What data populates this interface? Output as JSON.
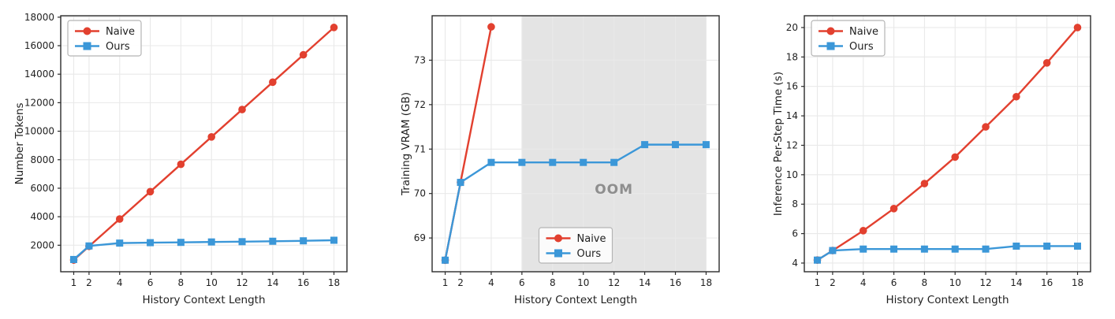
{
  "figure": {
    "background": "#ffffff",
    "xlabel": "History Context Length"
  },
  "colors": {
    "naive": "#e2402f",
    "ours": "#3b97d8",
    "grid": "#e9e9e9",
    "spine": "#2b2b2b",
    "tick_text": "#1f1f1f",
    "oom_fill": "#e4e4e4",
    "oom_text": "#8e8e8e",
    "legend_border": "#b5b5b5",
    "legend_bg": "#ffffff"
  },
  "legend_labels": {
    "naive": "Naive",
    "ours": "Ours"
  },
  "chart_data": [
    {
      "type": "line",
      "name": "number-tokens",
      "title": "",
      "xlabel": "History Context Length",
      "ylabel": "Number Tokens",
      "xticks": [
        1,
        2,
        4,
        6,
        8,
        10,
        12,
        14,
        16,
        18
      ],
      "yticks": [
        2000,
        4000,
        6000,
        8000,
        10000,
        12000,
        14000,
        16000,
        18000
      ],
      "xlim": [
        0.15,
        18.85
      ],
      "ylim": [
        140,
        18100
      ],
      "grid": true,
      "legend_position": "top-left",
      "series": [
        {
          "name": "Naive",
          "marker": "circle",
          "color_key": "naive",
          "x": [
            1,
            2,
            4,
            6,
            8,
            10,
            12,
            14,
            16,
            18
          ],
          "y": [
            960,
            1920,
            3840,
            5760,
            7680,
            9600,
            11520,
            13440,
            15360,
            17280
          ]
        },
        {
          "name": "Ours",
          "marker": "square",
          "color_key": "ours",
          "x": [
            1,
            2,
            4,
            6,
            8,
            10,
            12,
            14,
            16,
            18
          ],
          "y": [
            1000,
            1950,
            2150,
            2180,
            2200,
            2230,
            2250,
            2280,
            2310,
            2350
          ]
        }
      ]
    },
    {
      "type": "line",
      "name": "training-vram",
      "title": "",
      "xlabel": "History Context Length",
      "ylabel": "Training VRAM (GB)",
      "xticks": [
        1,
        2,
        4,
        6,
        8,
        10,
        12,
        14,
        16,
        18
      ],
      "yticks": [
        69,
        70,
        71,
        72,
        73
      ],
      "xlim": [
        0.15,
        18.85
      ],
      "ylim": [
        68.24,
        74.0
      ],
      "grid": true,
      "legend_position": "bottom-center",
      "shaded_region": {
        "x0": 6,
        "x1": 18
      },
      "annotation": {
        "text": "OOM",
        "x": 12,
        "y": 70.1
      },
      "series": [
        {
          "name": "Naive",
          "marker": "circle",
          "color_key": "naive",
          "x": [
            1,
            2,
            4
          ],
          "y": [
            68.5,
            70.25,
            73.75
          ]
        },
        {
          "name": "Ours",
          "marker": "square",
          "color_key": "ours",
          "x": [
            1,
            2,
            4,
            6,
            8,
            10,
            12,
            14,
            16,
            18
          ],
          "y": [
            68.5,
            70.25,
            70.7,
            70.7,
            70.7,
            70.7,
            70.7,
            71.1,
            71.1,
            71.1
          ]
        }
      ]
    },
    {
      "type": "line",
      "name": "inference-time",
      "title": "",
      "xlabel": "History Context Length",
      "ylabel": "Inference Per-Step Time (s)",
      "xticks": [
        1,
        2,
        4,
        6,
        8,
        10,
        12,
        14,
        16,
        18
      ],
      "yticks": [
        4,
        6,
        8,
        10,
        12,
        14,
        16,
        18,
        20
      ],
      "xlim": [
        0.15,
        18.85
      ],
      "ylim": [
        3.41,
        20.8
      ],
      "grid": true,
      "legend_position": "top-left",
      "series": [
        {
          "name": "Naive",
          "marker": "circle",
          "color_key": "naive",
          "x": [
            1,
            2,
            4,
            6,
            8,
            10,
            12,
            14,
            16,
            18
          ],
          "y": [
            4.2,
            4.85,
            6.2,
            7.7,
            9.4,
            11.2,
            13.25,
            15.3,
            17.6,
            20.0
          ]
        },
        {
          "name": "Ours",
          "marker": "square",
          "color_key": "ours",
          "x": [
            1,
            2,
            4,
            6,
            8,
            10,
            12,
            14,
            16,
            18
          ],
          "y": [
            4.2,
            4.85,
            4.95,
            4.95,
            4.95,
            4.95,
            4.95,
            5.15,
            5.15,
            5.15
          ]
        }
      ]
    }
  ]
}
